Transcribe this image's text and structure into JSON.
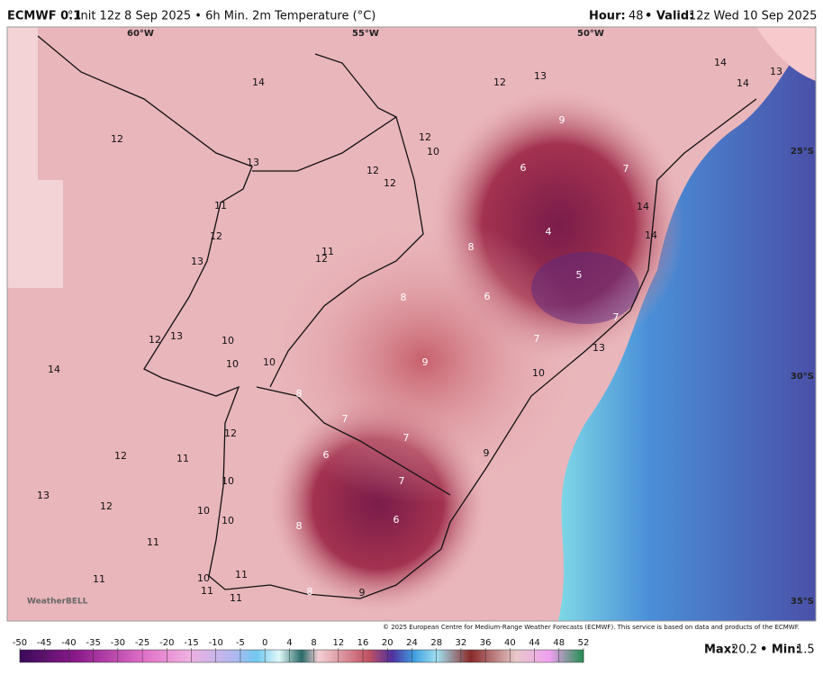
{
  "header": {
    "model": "ECMWF 0.1",
    "description": "° Init 12z 8 Sep 2025 • 6h Min. 2m Temperature (°C)",
    "hour_label": "Hour:",
    "hour": "48",
    "valid_label": "• Valid:",
    "valid": "12z Wed 10 Sep 2025"
  },
  "map": {
    "lon_labels": [
      "60°W",
      "55°W",
      "50°W"
    ],
    "lat_labels": [
      "25°S",
      "30°S",
      "35°S"
    ],
    "labels": [
      14,
      12,
      12,
      13,
      14,
      13,
      14,
      9,
      12,
      10,
      13,
      12,
      6,
      7,
      12,
      11,
      14,
      12,
      4,
      8,
      14,
      11,
      12,
      13,
      5,
      8,
      6,
      7,
      12,
      13,
      10,
      7,
      13,
      10,
      10,
      9,
      14,
      10,
      8,
      7,
      7,
      12,
      6,
      12,
      11,
      9,
      7,
      10,
      13,
      12,
      10,
      6,
      10,
      8,
      11,
      11,
      10,
      11,
      11,
      8,
      9,
      11
    ],
    "logo": "WeatherBELL",
    "credit": "© 2025 European Centre for Medium-Range Weather Forecasts (ECMWF). This service is based on data and products of the ECMWF."
  },
  "colorbar": {
    "ticks": [
      -50,
      -45,
      -40,
      -35,
      -30,
      -25,
      -20,
      -15,
      -10,
      -5,
      0,
      4,
      8,
      12,
      16,
      20,
      24,
      28,
      32,
      36,
      40,
      44,
      48,
      52
    ]
  },
  "footer": {
    "max_label": "Max:",
    "max": 20.2,
    "min_label": "• Min:",
    "min": 1.5
  }
}
